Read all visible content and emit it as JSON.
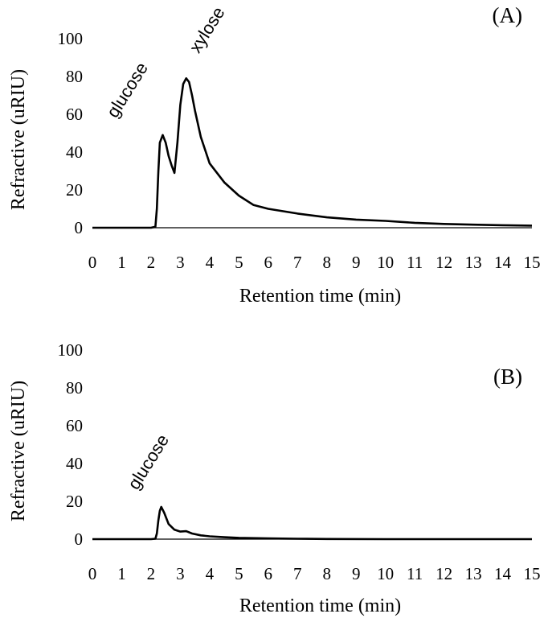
{
  "chart_data": [
    {
      "type": "line",
      "panel_label": "(A)",
      "xlabel": "Retention time (min)",
      "ylabel": "Refractive (uRIU)",
      "xlim": [
        0,
        15
      ],
      "ylim": [
        0,
        100
      ],
      "xticks": [
        0,
        1,
        2,
        3,
        4,
        5,
        6,
        7,
        8,
        9,
        10,
        11,
        12,
        13,
        14,
        15
      ],
      "yticks": [
        0,
        20,
        40,
        60,
        80,
        100
      ],
      "grid": false,
      "series": [
        {
          "x": [
            0,
            1,
            2.0,
            2.15,
            2.2,
            2.25,
            2.3,
            2.4,
            2.5,
            2.6,
            2.7,
            2.8,
            2.9,
            3.0,
            3.1,
            3.2,
            3.3,
            3.4,
            3.5,
            3.7,
            4.0,
            4.5,
            5.0,
            5.5,
            6.0,
            7.0,
            8.0,
            9.0,
            10.0,
            11.0,
            12.0,
            13.0,
            14.0,
            15.0
          ],
          "y": [
            0,
            0,
            0,
            0.5,
            10,
            30,
            45,
            49,
            45,
            38,
            33,
            29,
            45,
            65,
            76,
            79,
            77,
            70,
            62,
            48,
            34,
            24,
            17,
            12,
            10,
            7.5,
            5.5,
            4.3,
            3.6,
            2.6,
            2.0,
            1.6,
            1.3,
            1.1
          ]
        }
      ],
      "annotations": [
        {
          "text": "glucose",
          "x": 2.4,
          "y": 49
        },
        {
          "text": "xylose",
          "x": 3.3,
          "y": 79
        }
      ]
    },
    {
      "type": "line",
      "panel_label": "(B)",
      "xlabel": "Retention time (min)",
      "ylabel": "Refractive (uRIU)",
      "xlim": [
        0,
        15
      ],
      "ylim": [
        0,
        100
      ],
      "xticks": [
        0,
        1,
        2,
        3,
        4,
        5,
        6,
        7,
        8,
        9,
        10,
        11,
        12,
        13,
        14,
        15
      ],
      "yticks": [
        0,
        20,
        40,
        60,
        80,
        100
      ],
      "grid": false,
      "series": [
        {
          "x": [
            0,
            1,
            2.0,
            2.15,
            2.2,
            2.25,
            2.3,
            2.35,
            2.45,
            2.6,
            2.8,
            3.0,
            3.2,
            3.4,
            3.7,
            4.0,
            4.5,
            5.0,
            6.0,
            7.0,
            8.0,
            10.0,
            12.0,
            15.0
          ],
          "y": [
            0,
            0,
            0,
            0.2,
            3,
            10,
            15,
            17,
            14,
            8,
            5,
            4,
            4.2,
            3,
            2,
            1.5,
            1,
            0.7,
            0.4,
            0.2,
            0.1,
            0,
            0,
            0
          ]
        }
      ],
      "annotations": [
        {
          "text": "glucose",
          "x": 2.35,
          "y": 17
        }
      ]
    }
  ]
}
